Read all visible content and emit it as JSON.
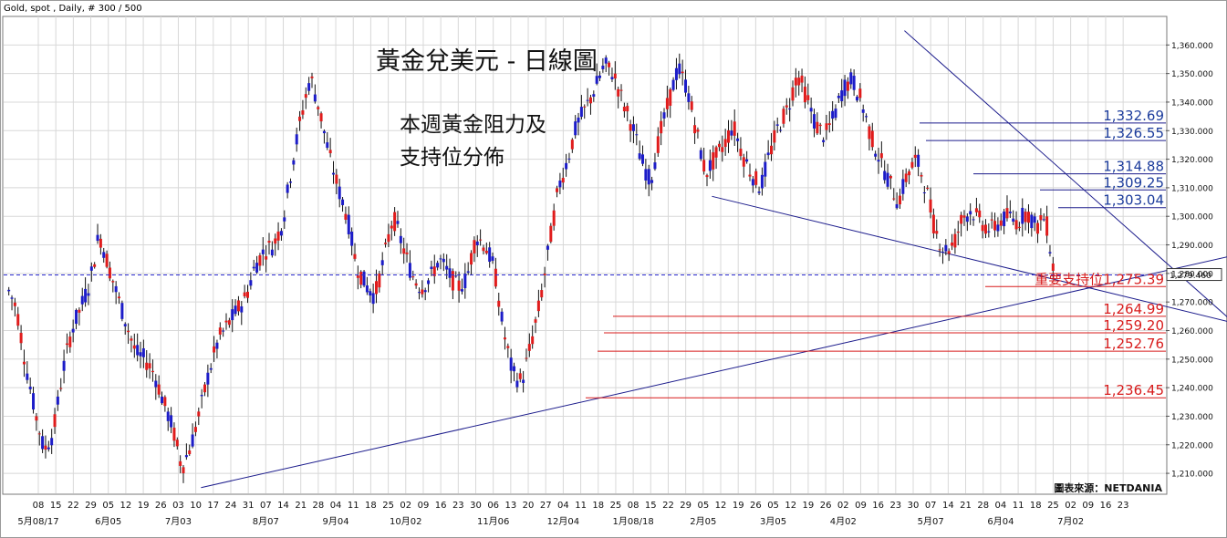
{
  "header": {
    "instrument": "Gold, spot , Daily, # 300 / 500"
  },
  "annotations": {
    "title": "黃金兌美元 - 日線圖",
    "subtitle_line1": "本週黃金阻力及",
    "subtitle_line2": "支持位分佈",
    "source": "圖表來源：NETDANIA"
  },
  "colors": {
    "bull_candle": "#1c1cc8",
    "bear_candle": "#e01c1c",
    "trendline": "#1c1c8c",
    "resistance_label": "#1c3c9c",
    "support_label": "#d81c1c",
    "current_price_line": "#2c2cd0",
    "grid": "#d8d8d8"
  },
  "chart_data": {
    "type": "candlestick",
    "instrument": "Gold, spot",
    "timeframe": "Daily",
    "ylim": [
      1203,
      1370
    ],
    "y_ticks": [
      "1,210.000",
      "1,220.000",
      "1,230.000",
      "1,240.000",
      "1,250.000",
      "1,260.000",
      "1,270.000",
      "1,280.000",
      "1,290.000",
      "1,300.000",
      "1,310.000",
      "1,320.000",
      "1,330.000",
      "1,340.000",
      "1,350.000",
      "1,360.000"
    ],
    "y_tick_values": [
      1210,
      1220,
      1230,
      1240,
      1250,
      1260,
      1270,
      1280,
      1290,
      1300,
      1310,
      1320,
      1330,
      1340,
      1350,
      1360
    ],
    "current_price": 1279.46,
    "current_price_label": "1,279.460",
    "x_labels_days": [
      "08",
      "15",
      "22",
      "29",
      "05",
      "12",
      "19",
      "26",
      "03",
      "10",
      "17",
      "24",
      "31",
      "07",
      "14",
      "21",
      "28",
      "04",
      "11",
      "18",
      "25",
      "02",
      "09",
      "16",
      "23",
      "30",
      "06",
      "13",
      "20",
      "27",
      "04",
      "11",
      "18",
      "25",
      "08",
      "15",
      "22",
      "29",
      "05",
      "12",
      "19",
      "26",
      "05",
      "12",
      "19",
      "26",
      "02",
      "09",
      "16",
      "23",
      "30",
      "07",
      "14",
      "21",
      "28",
      "04",
      "11",
      "18",
      "25",
      "02",
      "09",
      "16",
      "23"
    ],
    "x_labels_months": [
      {
        "label": "5月08/17",
        "day_index": 0
      },
      {
        "label": "6月05",
        "day_index": 4
      },
      {
        "label": "7月03",
        "day_index": 8
      },
      {
        "label": "8月07",
        "day_index": 13
      },
      {
        "label": "9月04",
        "day_index": 17
      },
      {
        "label": "10月02",
        "day_index": 21
      },
      {
        "label": "11月06",
        "day_index": 26
      },
      {
        "label": "12月04",
        "day_index": 30
      },
      {
        "label": "1月08/18",
        "day_index": 34
      },
      {
        "label": "2月05",
        "day_index": 38
      },
      {
        "label": "3月05",
        "day_index": 42
      },
      {
        "label": "4月02",
        "day_index": 46
      },
      {
        "label": "5月07",
        "day_index": 51
      },
      {
        "label": "6月04",
        "day_index": 55
      },
      {
        "label": "7月02",
        "day_index": 59
      }
    ],
    "ohlc_key_points": [
      {
        "x": 0,
        "y": 1275
      },
      {
        "x": 1,
        "y": 1268
      },
      {
        "x": 2,
        "y": 1248
      },
      {
        "x": 3,
        "y": 1232
      },
      {
        "x": 4,
        "y": 1218
      },
      {
        "x": 5,
        "y": 1224
      },
      {
        "x": 6,
        "y": 1245
      },
      {
        "x": 7,
        "y": 1260
      },
      {
        "x": 8,
        "y": 1268
      },
      {
        "x": 9,
        "y": 1277
      },
      {
        "x": 10,
        "y": 1294
      },
      {
        "x": 11,
        "y": 1283
      },
      {
        "x": 12,
        "y": 1272
      },
      {
        "x": 13,
        "y": 1262
      },
      {
        "x": 14,
        "y": 1252
      },
      {
        "x": 15,
        "y": 1250
      },
      {
        "x": 16,
        "y": 1245
      },
      {
        "x": 17,
        "y": 1235
      },
      {
        "x": 18,
        "y": 1226
      },
      {
        "x": 19,
        "y": 1212
      },
      {
        "x": 20,
        "y": 1220
      },
      {
        "x": 21,
        "y": 1232
      },
      {
        "x": 22,
        "y": 1246
      },
      {
        "x": 23,
        "y": 1257
      },
      {
        "x": 24,
        "y": 1262
      },
      {
        "x": 25,
        "y": 1267
      },
      {
        "x": 26,
        "y": 1272
      },
      {
        "x": 27,
        "y": 1283
      },
      {
        "x": 28,
        "y": 1288
      },
      {
        "x": 29,
        "y": 1290
      },
      {
        "x": 30,
        "y": 1298
      },
      {
        "x": 31,
        "y": 1318
      },
      {
        "x": 32,
        "y": 1335
      },
      {
        "x": 33,
        "y": 1349
      },
      {
        "x": 34,
        "y": 1337
      },
      {
        "x": 35,
        "y": 1322
      },
      {
        "x": 36,
        "y": 1310
      },
      {
        "x": 37,
        "y": 1300
      },
      {
        "x": 38,
        "y": 1283
      },
      {
        "x": 39,
        "y": 1276
      },
      {
        "x": 40,
        "y": 1272
      },
      {
        "x": 41,
        "y": 1285
      },
      {
        "x": 42,
        "y": 1300
      },
      {
        "x": 43,
        "y": 1290
      },
      {
        "x": 44,
        "y": 1280
      },
      {
        "x": 45,
        "y": 1275
      },
      {
        "x": 46,
        "y": 1278
      },
      {
        "x": 47,
        "y": 1285
      },
      {
        "x": 48,
        "y": 1280
      },
      {
        "x": 49,
        "y": 1275
      },
      {
        "x": 50,
        "y": 1278
      },
      {
        "x": 51,
        "y": 1293
      },
      {
        "x": 52,
        "y": 1290
      },
      {
        "x": 53,
        "y": 1282
      },
      {
        "x": 54,
        "y": 1260
      },
      {
        "x": 55,
        "y": 1245
      },
      {
        "x": 56,
        "y": 1242
      },
      {
        "x": 57,
        "y": 1255
      },
      {
        "x": 58,
        "y": 1270
      },
      {
        "x": 59,
        "y": 1290
      },
      {
        "x": 60,
        "y": 1310
      },
      {
        "x": 61,
        "y": 1320
      },
      {
        "x": 62,
        "y": 1332
      },
      {
        "x": 63,
        "y": 1338
      },
      {
        "x": 64,
        "y": 1345
      },
      {
        "x": 65,
        "y": 1353
      },
      {
        "x": 66,
        "y": 1350
      },
      {
        "x": 67,
        "y": 1340
      },
      {
        "x": 68,
        "y": 1332
      },
      {
        "x": 69,
        "y": 1320
      },
      {
        "x": 70,
        "y": 1312
      },
      {
        "x": 71,
        "y": 1328
      },
      {
        "x": 72,
        "y": 1340
      },
      {
        "x": 73,
        "y": 1352
      },
      {
        "x": 74,
        "y": 1345
      },
      {
        "x": 75,
        "y": 1330
      },
      {
        "x": 76,
        "y": 1315
      },
      {
        "x": 77,
        "y": 1320
      },
      {
        "x": 78,
        "y": 1325
      },
      {
        "x": 79,
        "y": 1332
      },
      {
        "x": 80,
        "y": 1322
      },
      {
        "x": 81,
        "y": 1315
      },
      {
        "x": 82,
        "y": 1310
      },
      {
        "x": 83,
        "y": 1322
      },
      {
        "x": 84,
        "y": 1332
      },
      {
        "x": 85,
        "y": 1338
      },
      {
        "x": 86,
        "y": 1350
      },
      {
        "x": 87,
        "y": 1342
      },
      {
        "x": 88,
        "y": 1332
      },
      {
        "x": 89,
        "y": 1328
      },
      {
        "x": 90,
        "y": 1335
      },
      {
        "x": 91,
        "y": 1345
      },
      {
        "x": 92,
        "y": 1348
      },
      {
        "x": 93,
        "y": 1340
      },
      {
        "x": 94,
        "y": 1328
      },
      {
        "x": 95,
        "y": 1320
      },
      {
        "x": 96,
        "y": 1312
      },
      {
        "x": 97,
        "y": 1305
      },
      {
        "x": 98,
        "y": 1315
      },
      {
        "x": 99,
        "y": 1320
      },
      {
        "x": 100,
        "y": 1310
      },
      {
        "x": 101,
        "y": 1295
      },
      {
        "x": 102,
        "y": 1288
      },
      {
        "x": 103,
        "y": 1290
      },
      {
        "x": 104,
        "y": 1300
      },
      {
        "x": 105,
        "y": 1302
      },
      {
        "x": 106,
        "y": 1298
      },
      {
        "x": 107,
        "y": 1295
      },
      {
        "x": 108,
        "y": 1298
      },
      {
        "x": 109,
        "y": 1300
      },
      {
        "x": 110,
        "y": 1298
      },
      {
        "x": 111,
        "y": 1302
      },
      {
        "x": 112,
        "y": 1296
      },
      {
        "x": 113,
        "y": 1300
      },
      {
        "x": 114,
        "y": 1279
      }
    ],
    "levels": [
      {
        "label": "1,332.69",
        "value": 1332.69,
        "kind": "resistance"
      },
      {
        "label": "1,326.55",
        "value": 1326.55,
        "kind": "resistance"
      },
      {
        "label": "1,314.88",
        "value": 1314.88,
        "kind": "resistance"
      },
      {
        "label": "1,309.25",
        "value": 1309.25,
        "kind": "resistance"
      },
      {
        "label": "1,303.04",
        "value": 1303.04,
        "kind": "resistance"
      },
      {
        "label": "重要支持位1,275.39",
        "value": 1275.39,
        "kind": "support"
      },
      {
        "label": "1,264.99",
        "value": 1264.99,
        "kind": "support"
      },
      {
        "label": "1,259.20",
        "value": 1259.2,
        "kind": "support"
      },
      {
        "label": "1,252.76",
        "value": 1252.76,
        "kind": "support"
      },
      {
        "label": "1,236.45",
        "value": 1236.45,
        "kind": "support"
      }
    ],
    "grid": true,
    "legend": "none"
  }
}
